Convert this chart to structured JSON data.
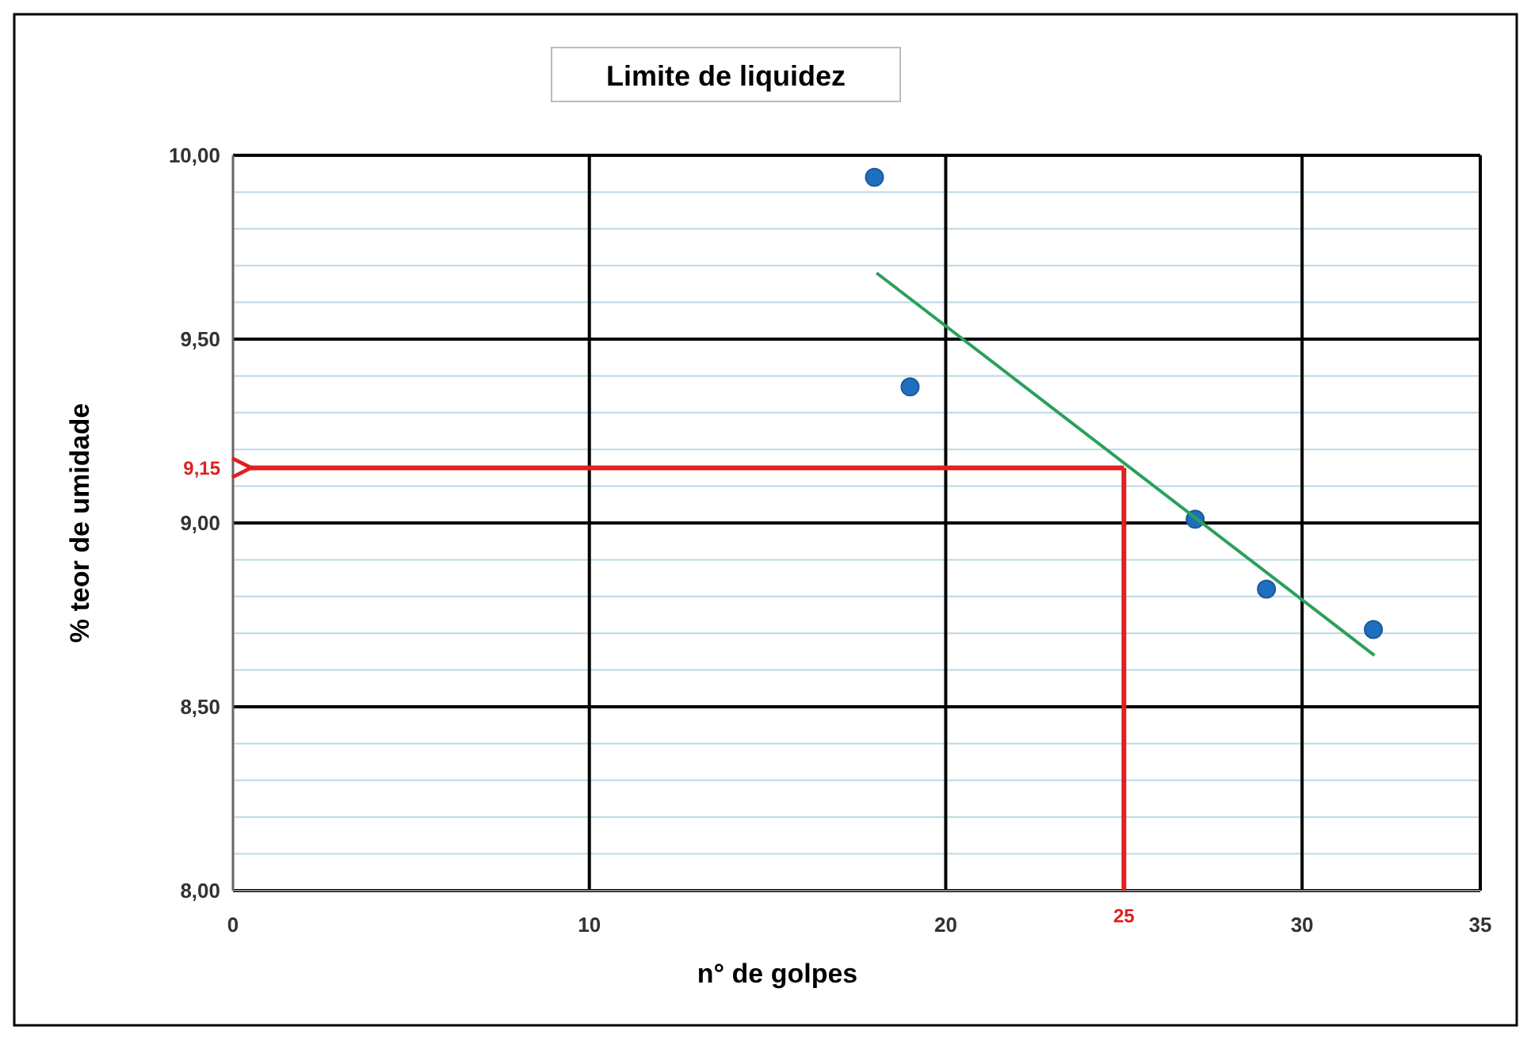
{
  "chart_data": {
    "type": "scatter",
    "title": "Limite de liquidez",
    "xlabel": "n° de golpes",
    "ylabel": "% teor de umidade",
    "xlim": [
      0,
      35
    ],
    "xticks": [
      0,
      10,
      20,
      30,
      35
    ],
    "ylim": [
      8,
      10
    ],
    "yticks": [
      {
        "value": 8,
        "label": "8,00"
      },
      {
        "value": 8.1,
        "label": null
      },
      {
        "value": 8.2,
        "label": null
      },
      {
        "value": 8.3,
        "label": null
      },
      {
        "value": 8.4,
        "label": null
      },
      {
        "value": 8.5,
        "label": "8,50"
      },
      {
        "value": 8.6,
        "label": null
      },
      {
        "value": 8.7,
        "label": null
      },
      {
        "value": 8.8,
        "label": null
      },
      {
        "value": 8.9,
        "label": null
      },
      {
        "value": 9,
        "label": "9,00"
      },
      {
        "value": 9.1,
        "label": null
      },
      {
        "value": 9.2,
        "label": null
      },
      {
        "value": 9.3,
        "label": null
      },
      {
        "value": 9.4,
        "label": null
      },
      {
        "value": 9.5,
        "label": "9,50"
      },
      {
        "value": 9.6,
        "label": null
      },
      {
        "value": 9.7,
        "label": null
      },
      {
        "value": 9.8,
        "label": null
      },
      {
        "value": 9.9,
        "label": null
      },
      {
        "value": 10,
        "label": "10,00"
      }
    ],
    "grid": true,
    "series": [
      {
        "marker": "circle",
        "color": "#1f6fbf",
        "x": [
          18,
          19,
          27,
          29,
          32
        ],
        "values": [
          9.94,
          9.37,
          9.01,
          8.82,
          8.71
        ]
      },
      {
        "type": "line",
        "color": "#2aa05a",
        "x": [
          18.06,
          32.03
        ],
        "values": [
          9.68,
          8.64
        ]
      }
    ],
    "ref_lines": [
      {
        "axis": "y",
        "value": 9.15,
        "label": "9,15",
        "color": "#e02020"
      },
      {
        "axis": "x",
        "value": 25,
        "label": "25",
        "color": "#e02020"
      }
    ]
  }
}
